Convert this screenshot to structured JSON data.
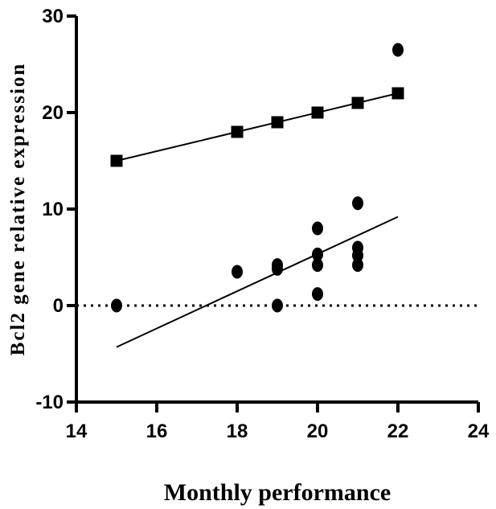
{
  "chart_data": {
    "type": "scatter",
    "xlabel": "Monthly performance",
    "ylabel": "Bcl2 gene relative expression",
    "xlim": [
      14,
      24
    ],
    "ylim": [
      -10,
      30
    ],
    "xticks": [
      14,
      16,
      18,
      20,
      22,
      24
    ],
    "yticks": [
      -10,
      0,
      10,
      20,
      30
    ],
    "reference_line": {
      "y": 0,
      "style": "dotted"
    },
    "series": [
      {
        "marker": "square",
        "points": [
          [
            15,
            15
          ],
          [
            18,
            18
          ],
          [
            19,
            19
          ],
          [
            20,
            20
          ],
          [
            21,
            21
          ],
          [
            22,
            22
          ]
        ],
        "fit": {
          "x": [
            15,
            22
          ],
          "y": [
            15,
            22
          ]
        }
      },
      {
        "marker": "circle",
        "points": [
          [
            15,
            0
          ],
          [
            18,
            3.5
          ],
          [
            19,
            0
          ],
          [
            19,
            3.8
          ],
          [
            19,
            4.2
          ],
          [
            20,
            1.2
          ],
          [
            20,
            4.2
          ],
          [
            20,
            5.3
          ],
          [
            20,
            8
          ],
          [
            21,
            4.2
          ],
          [
            21,
            5.2
          ],
          [
            21,
            6
          ],
          [
            21,
            10.6
          ],
          [
            22,
            26.5
          ]
        ],
        "fit": {
          "x": [
            15,
            22
          ],
          "y": [
            -4.3,
            9.2
          ]
        }
      }
    ]
  }
}
